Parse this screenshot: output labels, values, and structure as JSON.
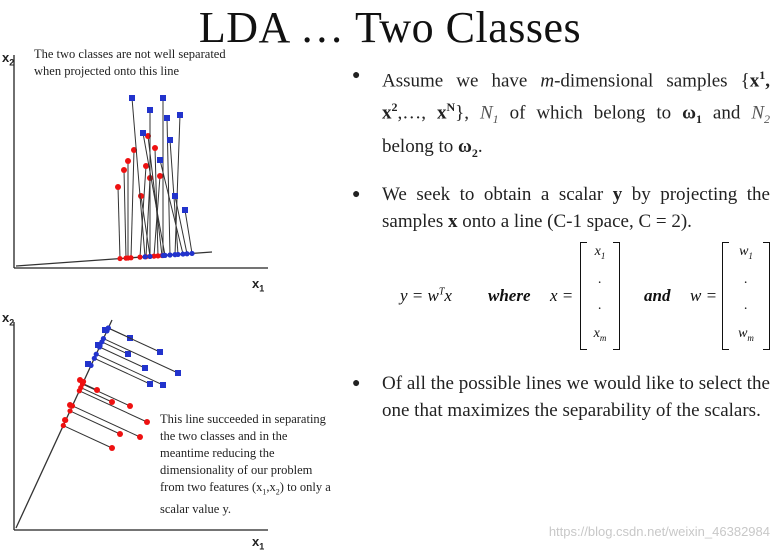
{
  "title": "LDA … Two Classes",
  "colors": {
    "class1": "#ee1111",
    "class2": "#2233cc",
    "line": "#333333"
  },
  "top_plot": {
    "x_axis_label": "x",
    "x_axis_sub": "1",
    "y_axis_label": "x",
    "y_axis_sub": "2",
    "note": "The two classes are not well separated when projected onto this line"
  },
  "bottom_plot": {
    "x_axis_label": "x",
    "x_axis_sub": "1",
    "y_axis_label": "x",
    "y_axis_sub": "2",
    "note_line1": "This line succeeded in separating",
    "note_line2": "the two classes and in the",
    "note_line3": "meantime reducing the",
    "note_line4": "dimensionality of our problem",
    "note_line5_pre": "from two features (x",
    "note_line5_sub1": "1",
    "note_line5_mid": ",x",
    "note_line5_sub2": "2",
    "note_line5_post": ") to only a",
    "note_line6": "scalar value y."
  },
  "bullets": [
    {
      "id": "b1",
      "parts": [
        "Assume we have ",
        "m",
        "-dimensional samples {",
        "x",
        "1",
        ",",
        "x",
        "2",
        ",…, ",
        "x",
        "N",
        "}, ",
        "N",
        "1",
        " of which belong to ",
        "ω",
        "1",
        " and ",
        "N",
        "2",
        " belong to ",
        "ω",
        "2",
        "."
      ]
    },
    {
      "id": "b2",
      "parts": [
        "We seek to obtain a scalar ",
        "y",
        " by projecting the samples ",
        "x",
        " onto a line (C-1 space, C = 2)."
      ]
    },
    {
      "id": "b3",
      "parts": [
        "Of all the possible lines we would like to select the one that maximizes the separability of the scalars."
      ]
    }
  ],
  "formula": {
    "lhs": "y = w",
    "sup_T": "T",
    "x_var": "x",
    "where": "where",
    "x_eq": "x =",
    "and": "and",
    "w_eq": "w =",
    "x_vec": [
      "x",
      "1",
      ".",
      ".",
      "x",
      "m"
    ],
    "w_vec": [
      "w",
      "1",
      ".",
      ".",
      "w",
      "m"
    ]
  },
  "watermark": "https://blog.csdn.net/weixin_46382984"
}
